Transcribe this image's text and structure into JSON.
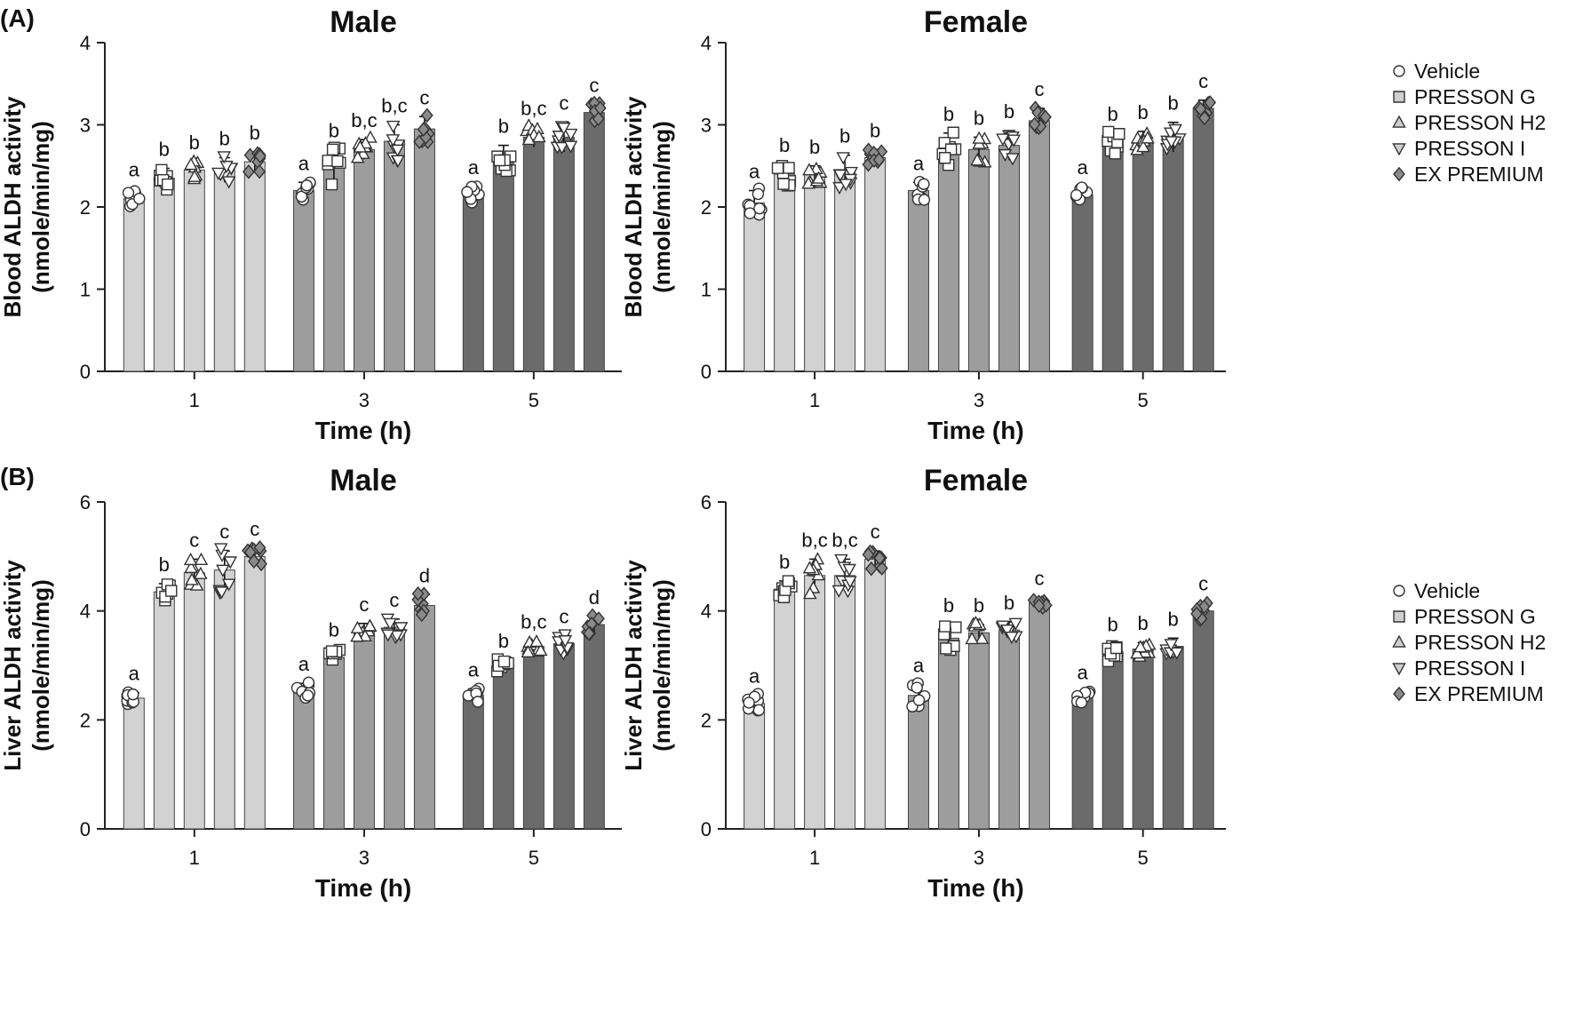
{
  "figure": {
    "series_names": [
      "Vehicle",
      "PRESSON G",
      "PRESSON H2",
      "PRESSON I",
      "EX PREMIUM"
    ],
    "series_markers": [
      "circle",
      "square",
      "triangle-up",
      "triangle-down",
      "diamond"
    ],
    "time_fill_colors": [
      "#d2d2d2",
      "#9d9d9d",
      "#6b6b6b"
    ],
    "marker_colors": {
      "light": "#ffffff",
      "dark": "#8a8a8a"
    }
  },
  "chart_data": [
    {
      "type": "bar",
      "panel_label": "(A)",
      "title": "Male",
      "ylabel_line1": "Blood ALDH activity",
      "ylabel_line2": "(nmole/min/mg)",
      "xlabel": "Time (h)",
      "ylim": [
        0,
        4
      ],
      "yticks": [
        "0",
        "1",
        "2",
        "3",
        "4"
      ],
      "categories": [
        "1",
        "3",
        "5"
      ],
      "show_legend": false,
      "series": [
        {
          "name": "Vehicle",
          "values": [
            2.1,
            2.2,
            2.15
          ],
          "errors": [
            0.12,
            0.1,
            0.1
          ],
          "letters": [
            "a",
            "a",
            "a"
          ]
        },
        {
          "name": "PRESSON G",
          "values": [
            2.35,
            2.5,
            2.6
          ],
          "errors": [
            0.12,
            0.2,
            0.15
          ],
          "letters": [
            "b",
            "b",
            "b"
          ]
        },
        {
          "name": "PRESSON H2",
          "values": [
            2.45,
            2.7,
            2.85
          ],
          "errors": [
            0.1,
            0.12,
            0.12
          ],
          "letters": [
            "b",
            "b,c",
            "b,c"
          ]
        },
        {
          "name": "PRESSON I",
          "values": [
            2.45,
            2.8,
            2.85
          ],
          "errors": [
            0.15,
            0.2,
            0.18
          ],
          "letters": [
            "b",
            "b,c",
            "c"
          ]
        },
        {
          "name": "EX PREMIUM",
          "values": [
            2.55,
            2.95,
            3.15
          ],
          "errors": [
            0.12,
            0.15,
            0.1
          ],
          "letters": [
            "b",
            "c",
            "c"
          ]
        }
      ]
    },
    {
      "type": "bar",
      "panel_label": "",
      "title": "Female",
      "ylabel_line1": "Blood ALDH activity",
      "ylabel_line2": "(nmole/min/mg)",
      "xlabel": "Time (h)",
      "ylim": [
        0,
        4
      ],
      "yticks": [
        "0",
        "1",
        "2",
        "3",
        "4"
      ],
      "categories": [
        "1",
        "3",
        "5"
      ],
      "show_legend": true,
      "series": [
        {
          "name": "Vehicle",
          "values": [
            2.05,
            2.2,
            2.15
          ],
          "errors": [
            0.15,
            0.1,
            0.1
          ],
          "letters": [
            "a",
            "a",
            "a"
          ]
        },
        {
          "name": "PRESSON G",
          "values": [
            2.4,
            2.7,
            2.75
          ],
          "errors": [
            0.12,
            0.2,
            0.15
          ],
          "letters": [
            "b",
            "b",
            "b"
          ]
        },
        {
          "name": "PRESSON H2",
          "values": [
            2.4,
            2.7,
            2.8
          ],
          "errors": [
            0.1,
            0.15,
            0.12
          ],
          "letters": [
            "b",
            "b",
            "b"
          ]
        },
        {
          "name": "PRESSON I",
          "values": [
            2.45,
            2.75,
            2.85
          ],
          "errors": [
            0.18,
            0.18,
            0.18
          ],
          "letters": [
            "b",
            "b",
            "b"
          ]
        },
        {
          "name": "EX PREMIUM",
          "values": [
            2.6,
            3.05,
            3.2
          ],
          "errors": [
            0.1,
            0.15,
            0.1
          ],
          "letters": [
            "b",
            "c",
            "c"
          ]
        }
      ]
    },
    {
      "type": "bar",
      "panel_label": "(B)",
      "title": "Male",
      "ylabel_line1": "Liver ALDH activity",
      "ylabel_line2": "(nmole/min/mg)",
      "xlabel": "Time (h)",
      "ylim": [
        0,
        6
      ],
      "yticks": [
        "0",
        "2",
        "4",
        "6"
      ],
      "categories": [
        "1",
        "3",
        "5"
      ],
      "show_legend": false,
      "series": [
        {
          "name": "Vehicle",
          "values": [
            2.4,
            2.55,
            2.45
          ],
          "errors": [
            0.1,
            0.12,
            0.12
          ],
          "letters": [
            "a",
            "a",
            "a"
          ]
        },
        {
          "name": "PRESSON G",
          "values": [
            4.35,
            3.15,
            3.0
          ],
          "errors": [
            0.15,
            0.15,
            0.1
          ],
          "letters": [
            "b",
            "b",
            "b"
          ]
        },
        {
          "name": "PRESSON H2",
          "values": [
            4.7,
            3.65,
            3.35
          ],
          "errors": [
            0.25,
            0.12,
            0.1
          ],
          "letters": [
            "c",
            "c",
            "b,c"
          ]
        },
        {
          "name": "PRESSON I",
          "values": [
            4.75,
            3.7,
            3.4
          ],
          "errors": [
            0.35,
            0.15,
            0.15
          ],
          "letters": [
            "c",
            "c",
            "c"
          ]
        },
        {
          "name": "EX PREMIUM",
          "values": [
            5.0,
            4.1,
            3.75
          ],
          "errors": [
            0.15,
            0.2,
            0.15
          ],
          "letters": [
            "c",
            "d",
            "d"
          ]
        }
      ]
    },
    {
      "type": "bar",
      "panel_label": "",
      "title": "Female",
      "ylabel_line1": "Liver ALDH activity",
      "ylabel_line2": "(nmole/min/mg)",
      "xlabel": "Time (h)",
      "ylim": [
        0,
        6
      ],
      "yticks": [
        "0",
        "2",
        "4",
        "6"
      ],
      "categories": [
        "1",
        "3",
        "5"
      ],
      "show_legend": true,
      "series": [
        {
          "name": "Vehicle",
          "values": [
            2.3,
            2.45,
            2.4
          ],
          "errors": [
            0.15,
            0.2,
            0.12
          ],
          "letters": [
            "a",
            "a",
            "a"
          ]
        },
        {
          "name": "PRESSON G",
          "values": [
            4.4,
            3.5,
            3.25
          ],
          "errors": [
            0.15,
            0.25,
            0.15
          ],
          "letters": [
            "b",
            "b",
            "b"
          ]
        },
        {
          "name": "PRESSON H2",
          "values": [
            4.65,
            3.6,
            3.3
          ],
          "errors": [
            0.3,
            0.15,
            0.12
          ],
          "letters": [
            "b,c",
            "b",
            "b"
          ]
        },
        {
          "name": "PRESSON I",
          "values": [
            4.65,
            3.65,
            3.35
          ],
          "errors": [
            0.3,
            0.15,
            0.15
          ],
          "letters": [
            "b,c",
            "b",
            "b"
          ]
        },
        {
          "name": "EX PREMIUM",
          "values": [
            4.95,
            4.15,
            4.0
          ],
          "errors": [
            0.15,
            0.1,
            0.15
          ],
          "letters": [
            "c",
            "c",
            "c"
          ]
        }
      ]
    }
  ]
}
